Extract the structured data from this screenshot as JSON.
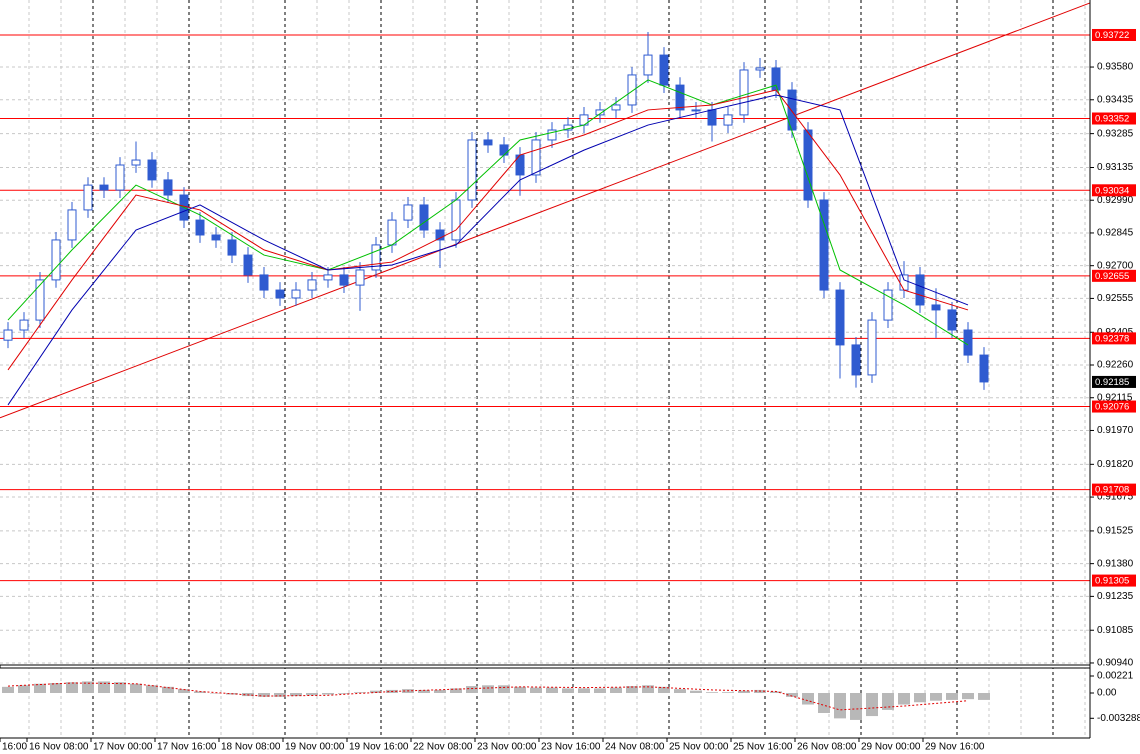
{
  "chart_data": {
    "type": "candlestick",
    "color": "#2f5bd0",
    "xlabels": [
      "16:00",
      "16 Nov 08:00",
      "17 Nov 00:00",
      "17 Nov 16:00",
      "18 Nov 08:00",
      "19 Nov 00:00",
      "19 Nov 16:00",
      "22 Nov 08:00",
      "23 Nov 00:00",
      "23 Nov 16:00",
      "24 Nov 08:00",
      "25 Nov 00:00",
      "25 Nov 16:00",
      "26 Nov 08:00",
      "29 Nov 00:00",
      "29 Nov 16:00"
    ],
    "open": [
      0.9237,
      0.92415,
      0.92459,
      0.92637,
      0.92814,
      0.92947,
      0.93057,
      0.93035,
      0.93146,
      0.93168,
      0.9308,
      0.93013,
      0.92902,
      0.92836,
      0.92814,
      0.92747,
      0.92659,
      0.92592,
      0.92557,
      0.92592,
      0.92637,
      0.92659,
      0.92614,
      0.92681,
      0.92792,
      0.92902,
      0.92969,
      0.92858,
      0.92814,
      0.92991,
      0.93257,
      0.93235,
      0.9319,
      0.93102,
      0.93257,
      0.93301,
      0.93323,
      0.93368,
      0.9339,
      0.93412,
      0.93545,
      0.93633,
      0.935,
      0.9339,
      0.9339,
      0.93323,
      0.93368,
      0.93567,
      0.93576,
      0.93478,
      0.93301,
      0.92991,
      0.92592,
      0.92349,
      0.92216,
      0.92459,
      0.92592,
      0.92659,
      0.92526,
      0.92504,
      0.92415,
      0.92304
    ],
    "high": [
      0.9245,
      0.92494,
      0.92672,
      0.92849,
      0.92982,
      0.93092,
      0.93092,
      0.93181,
      0.9325,
      0.93203,
      0.93115,
      0.93048,
      0.92937,
      0.92871,
      0.92849,
      0.92782,
      0.92694,
      0.92627,
      0.92627,
      0.92672,
      0.92694,
      0.92694,
      0.92716,
      0.92827,
      0.92937,
      0.93004,
      0.93004,
      0.92893,
      0.93026,
      0.93292,
      0.93292,
      0.9327,
      0.93225,
      0.93292,
      0.93336,
      0.93358,
      0.93403,
      0.93425,
      0.93447,
      0.9358,
      0.93735,
      0.93668,
      0.93535,
      0.93425,
      0.93425,
      0.93403,
      0.93602,
      0.9362,
      0.93611,
      0.93513,
      0.93336,
      0.93026,
      0.92627,
      0.92384,
      0.92494,
      0.92627,
      0.9272,
      0.92694,
      0.926,
      0.92539,
      0.9245,
      0.92339
    ],
    "low": [
      0.92335,
      0.9238,
      0.92424,
      0.92602,
      0.92779,
      0.92912,
      0.93,
      0.93,
      0.93111,
      0.93045,
      0.92978,
      0.92867,
      0.92801,
      0.92779,
      0.92712,
      0.92624,
      0.92557,
      0.92522,
      0.92522,
      0.92557,
      0.92602,
      0.92579,
      0.925,
      0.92646,
      0.92757,
      0.92867,
      0.92823,
      0.9269,
      0.92779,
      0.92956,
      0.932,
      0.93155,
      0.9301,
      0.93067,
      0.93222,
      0.93266,
      0.93288,
      0.93333,
      0.93355,
      0.93377,
      0.9351,
      0.93465,
      0.93355,
      0.93355,
      0.9325,
      0.93288,
      0.93333,
      0.93532,
      0.93443,
      0.93266,
      0.92956,
      0.92557,
      0.922,
      0.9216,
      0.92181,
      0.92424,
      0.92557,
      0.92491,
      0.9238,
      0.9238,
      0.92269,
      0.9215
    ],
    "close": [
      0.92415,
      0.92459,
      0.92637,
      0.92814,
      0.92947,
      0.93057,
      0.93035,
      0.93146,
      0.93168,
      0.9308,
      0.93013,
      0.92902,
      0.92836,
      0.92814,
      0.92747,
      0.92659,
      0.92592,
      0.92557,
      0.92592,
      0.92637,
      0.92659,
      0.92614,
      0.92681,
      0.92792,
      0.92902,
      0.92969,
      0.92858,
      0.92814,
      0.92991,
      0.93257,
      0.93235,
      0.9319,
      0.93102,
      0.93257,
      0.93301,
      0.93323,
      0.93368,
      0.9339,
      0.93412,
      0.93545,
      0.93633,
      0.935,
      0.9339,
      0.9339,
      0.93323,
      0.93368,
      0.93567,
      0.93576,
      0.93478,
      0.93301,
      0.92991,
      0.92592,
      0.92349,
      0.92216,
      0.92459,
      0.92592,
      0.92659,
      0.92526,
      0.92504,
      0.92415,
      0.92304,
      0.92185
    ],
    "ma_index": [
      0,
      4,
      8,
      12,
      16,
      20,
      24,
      28,
      32,
      36,
      40,
      44,
      48,
      52,
      56,
      60
    ],
    "moving_averages": [
      {
        "color": "#00c000",
        "values": [
          0.92459,
          0.9277,
          0.93057,
          0.92925,
          0.92747,
          0.92681,
          0.92792,
          0.92991,
          0.93257,
          0.93323,
          0.93523,
          0.93412,
          0.935,
          0.92681,
          0.92526,
          0.92349
        ]
      },
      {
        "color": "#e00000",
        "values": [
          0.92238,
          0.92637,
          0.93013,
          0.92947,
          0.9277,
          0.92681,
          0.92716,
          0.92858,
          0.9319,
          0.93279,
          0.9339,
          0.93412,
          0.93478,
          0.93102,
          0.92592,
          0.92504
        ]
      },
      {
        "color": "#0000b0",
        "values": [
          0.92083,
          0.92504,
          0.92858,
          0.92969,
          0.92814,
          0.92681,
          0.92703,
          0.92792,
          0.9308,
          0.93212,
          0.93323,
          0.9339,
          0.93456,
          0.9339,
          0.92637,
          0.92526
        ]
      }
    ],
    "ylim": [
      0.90931,
      0.93877
    ],
    "yticks": [
      {
        "value": 0.9358,
        "label": "0.93580"
      },
      0.93435,
      0.93285,
      0.93135,
      {
        "value": 0.9299,
        "label": "0.92990"
      },
      0.92845,
      {
        "value": 0.927,
        "label": "0.92700"
      },
      0.92555,
      0.92405,
      {
        "value": 0.9226,
        "label": "0.92260"
      },
      0.92115,
      {
        "value": 0.9197,
        "label": "0.91970"
      },
      {
        "value": 0.9182,
        "label": "0.91820"
      },
      0.91675,
      0.91525,
      {
        "value": 0.9138,
        "label": "0.91380"
      },
      0.91235,
      0.91085,
      {
        "value": 0.9094,
        "label": "0.90940"
      }
    ],
    "grid": true,
    "levels": {
      "color": "#ff0000",
      "values": [
        0.93722,
        0.93352,
        0.93034,
        0.92655,
        0.92378,
        0.92076,
        0.91708,
        0.91305
      ]
    },
    "current_price": 0.92185,
    "trendline": {
      "color": "#e00000",
      "x": [
        -0.5,
        67.625
      ],
      "y": [
        0.92026,
        0.93864
      ]
    },
    "oscillator": {
      "color": "#b8b8b8",
      "signal_color": "#e00000",
      "histogram": [
        0.0008,
        0.001,
        0.0012,
        0.0013,
        0.0014,
        0.0015,
        0.0015,
        0.0014,
        0.0012,
        0.001,
        0.0008,
        0.0005,
        0.0002,
        0,
        -0.0002,
        -0.0004,
        -0.0005,
        -0.0005,
        -0.0004,
        -0.0003,
        -0.0002,
        -0.0001,
        0.0001,
        0.0003,
        0.0004,
        0.0005,
        0.0004,
        0.0004,
        0.0006,
        0.0009,
        0.001,
        0.001,
        0.0008,
        0.0007,
        0.0007,
        0.0006,
        0.0006,
        0.0006,
        0.0007,
        0.0009,
        0.001,
        0.0008,
        0.0005,
        0.0003,
        0.0001,
        0.0001,
        0.0003,
        0.0004,
        0.0002,
        -0.0005,
        -0.0015,
        -0.0026,
        -0.0033,
        -0.0035,
        -0.003,
        -0.0022,
        -0.0015,
        -0.0012,
        -0.001,
        -0.0009,
        -0.0008,
        -0.0009
      ],
      "signal": [
        0.0009,
        0.0013,
        0.0012,
        0.0002,
        -0.0004,
        -0.0003,
        0.0002,
        0.0005,
        0.0008,
        0.0007,
        0.0008,
        0.0004,
        0.0002,
        -0.0022,
        -0.0017,
        -0.001
      ],
      "ylim": [
        -0.00585,
        0.00325
      ],
      "yticks": [
        0.00221,
        {
          "value": 0,
          "label": "0.00"
        },
        -0.003288
      ]
    }
  }
}
